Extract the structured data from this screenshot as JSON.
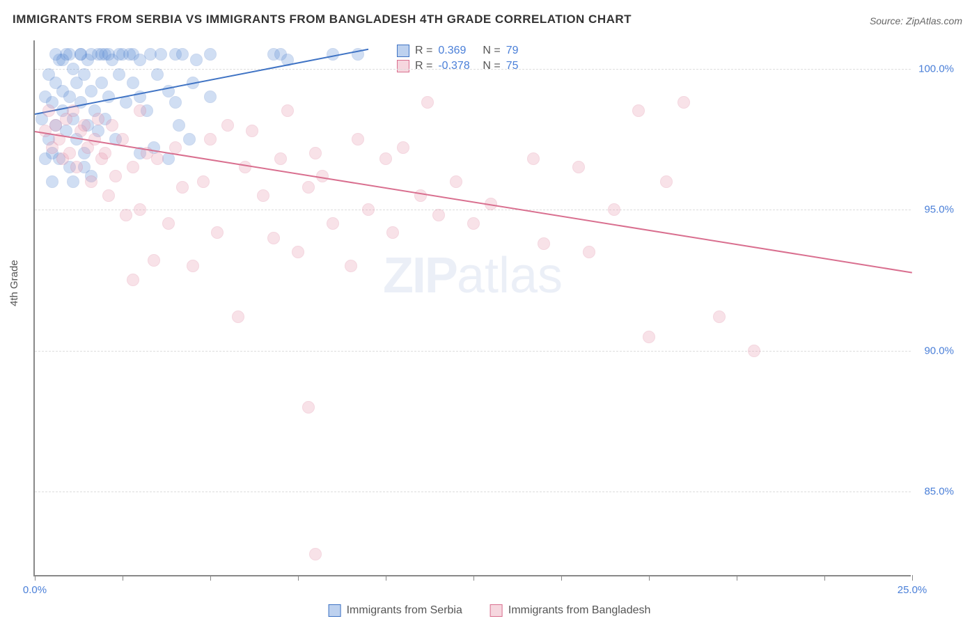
{
  "title": "IMMIGRANTS FROM SERBIA VS IMMIGRANTS FROM BANGLADESH 4TH GRADE CORRELATION CHART",
  "source": "Source: ZipAtlas.com",
  "y_axis_label": "4th Grade",
  "watermark": {
    "part1": "ZIP",
    "part2": "atlas"
  },
  "chart": {
    "type": "scatter",
    "xlim": [
      0,
      25
    ],
    "ylim": [
      82,
      101
    ],
    "xtick_minor_step": 2.5,
    "xtick_labels": [
      {
        "x": 0,
        "label": "0.0%"
      },
      {
        "x": 25,
        "label": "25.0%"
      }
    ],
    "ytick_labels": [
      {
        "y": 85,
        "label": "85.0%"
      },
      {
        "y": 90,
        "label": "90.0%"
      },
      {
        "y": 95,
        "label": "95.0%"
      },
      {
        "y": 100,
        "label": "100.0%"
      }
    ],
    "grid_color": "#e0e0e0",
    "background_color": "#ffffff",
    "marker_radius": 9,
    "marker_fill_opacity": 0.28,
    "marker_stroke_opacity": 0.9,
    "line_width": 2
  },
  "series": [
    {
      "name": "Immigrants from Serbia",
      "color": "#5b8dd6",
      "stroke": "#3f73c4",
      "r_value": "0.369",
      "n_value": "79",
      "trend": {
        "x1": 0,
        "y1": 98.4,
        "x2": 9.5,
        "y2": 100.7
      },
      "points": [
        [
          0.2,
          98.2
        ],
        [
          0.3,
          99.0
        ],
        [
          0.4,
          97.5
        ],
        [
          0.4,
          99.8
        ],
        [
          0.5,
          98.8
        ],
        [
          0.5,
          97.0
        ],
        [
          0.6,
          99.5
        ],
        [
          0.6,
          98.0
        ],
        [
          0.7,
          100.3
        ],
        [
          0.7,
          96.8
        ],
        [
          0.8,
          99.2
        ],
        [
          0.8,
          98.5
        ],
        [
          0.9,
          97.8
        ],
        [
          0.9,
          100.5
        ],
        [
          1.0,
          99.0
        ],
        [
          1.0,
          96.5
        ],
        [
          1.1,
          98.2
        ],
        [
          1.1,
          100.0
        ],
        [
          1.2,
          97.5
        ],
        [
          1.2,
          99.5
        ],
        [
          1.3,
          98.8
        ],
        [
          1.3,
          100.5
        ],
        [
          1.4,
          97.0
        ],
        [
          1.4,
          99.8
        ],
        [
          1.5,
          98.0
        ],
        [
          1.5,
          100.3
        ],
        [
          1.6,
          99.2
        ],
        [
          1.6,
          96.2
        ],
        [
          1.7,
          98.5
        ],
        [
          1.8,
          100.5
        ],
        [
          1.8,
          97.8
        ],
        [
          1.9,
          99.5
        ],
        [
          2.0,
          100.5
        ],
        [
          2.0,
          98.2
        ],
        [
          2.1,
          99.0
        ],
        [
          2.2,
          100.3
        ],
        [
          2.3,
          97.5
        ],
        [
          2.4,
          99.8
        ],
        [
          2.5,
          100.5
        ],
        [
          2.6,
          98.8
        ],
        [
          2.8,
          99.5
        ],
        [
          2.8,
          100.5
        ],
        [
          3.0,
          99.0
        ],
        [
          3.0,
          100.3
        ],
        [
          3.2,
          98.5
        ],
        [
          3.3,
          100.5
        ],
        [
          3.4,
          97.2
        ],
        [
          3.5,
          99.8
        ],
        [
          3.6,
          100.5
        ],
        [
          3.8,
          99.2
        ],
        [
          3.8,
          96.8
        ],
        [
          4.0,
          100.5
        ],
        [
          4.1,
          98.0
        ],
        [
          4.2,
          100.5
        ],
        [
          4.4,
          97.5
        ],
        [
          4.5,
          99.5
        ],
        [
          4.6,
          100.3
        ],
        [
          5.0,
          99.0
        ],
        [
          5.0,
          100.5
        ],
        [
          6.8,
          100.5
        ],
        [
          7.0,
          100.5
        ],
        [
          7.2,
          100.3
        ],
        [
          8.5,
          100.5
        ],
        [
          9.2,
          100.5
        ],
        [
          1.0,
          100.5
        ],
        [
          1.3,
          100.5
        ],
        [
          1.6,
          100.5
        ],
        [
          1.9,
          100.5
        ],
        [
          2.1,
          100.5
        ],
        [
          2.4,
          100.5
        ],
        [
          2.7,
          100.5
        ],
        [
          0.6,
          100.5
        ],
        [
          0.8,
          100.3
        ],
        [
          1.1,
          96.0
        ],
        [
          1.4,
          96.5
        ],
        [
          0.3,
          96.8
        ],
        [
          0.5,
          96.0
        ],
        [
          3.0,
          97.0
        ],
        [
          4.0,
          98.8
        ]
      ]
    },
    {
      "name": "Immigrants from Bangladesh",
      "color": "#e89ab0",
      "stroke": "#d96f8f",
      "r_value": "-0.378",
      "n_value": "75",
      "trend": {
        "x1": 0,
        "y1": 97.8,
        "x2": 25,
        "y2": 92.8
      },
      "points": [
        [
          0.3,
          97.8
        ],
        [
          0.4,
          98.5
        ],
        [
          0.5,
          97.2
        ],
        [
          0.6,
          98.0
        ],
        [
          0.7,
          97.5
        ],
        [
          0.8,
          96.8
        ],
        [
          0.9,
          98.2
        ],
        [
          1.0,
          97.0
        ],
        [
          1.1,
          98.5
        ],
        [
          1.2,
          96.5
        ],
        [
          1.3,
          97.8
        ],
        [
          1.4,
          98.0
        ],
        [
          1.5,
          97.2
        ],
        [
          1.6,
          96.0
        ],
        [
          1.7,
          97.5
        ],
        [
          1.8,
          98.2
        ],
        [
          1.9,
          96.8
        ],
        [
          2.0,
          97.0
        ],
        [
          2.1,
          95.5
        ],
        [
          2.2,
          98.0
        ],
        [
          2.3,
          96.2
        ],
        [
          2.5,
          97.5
        ],
        [
          2.6,
          94.8
        ],
        [
          2.8,
          96.5
        ],
        [
          3.0,
          98.5
        ],
        [
          3.0,
          95.0
        ],
        [
          3.2,
          97.0
        ],
        [
          3.4,
          93.2
        ],
        [
          3.5,
          96.8
        ],
        [
          3.8,
          94.5
        ],
        [
          4.0,
          97.2
        ],
        [
          4.2,
          95.8
        ],
        [
          4.5,
          93.0
        ],
        [
          4.8,
          96.0
        ],
        [
          5.0,
          97.5
        ],
        [
          5.2,
          94.2
        ],
        [
          5.5,
          98.0
        ],
        [
          5.8,
          91.2
        ],
        [
          6.0,
          96.5
        ],
        [
          6.2,
          97.8
        ],
        [
          6.5,
          95.5
        ],
        [
          6.8,
          94.0
        ],
        [
          7.0,
          96.8
        ],
        [
          7.2,
          98.5
        ],
        [
          7.5,
          93.5
        ],
        [
          7.8,
          95.8
        ],
        [
          7.8,
          88.0
        ],
        [
          8.0,
          97.0
        ],
        [
          8.0,
          82.8
        ],
        [
          8.2,
          96.2
        ],
        [
          8.5,
          94.5
        ],
        [
          9.0,
          93.0
        ],
        [
          9.2,
          97.5
        ],
        [
          9.5,
          95.0
        ],
        [
          10.0,
          96.8
        ],
        [
          10.2,
          94.2
        ],
        [
          10.5,
          97.2
        ],
        [
          11.0,
          95.5
        ],
        [
          11.2,
          98.8
        ],
        [
          11.5,
          94.8
        ],
        [
          12.0,
          96.0
        ],
        [
          12.5,
          94.5
        ],
        [
          13.0,
          95.2
        ],
        [
          14.2,
          96.8
        ],
        [
          14.5,
          93.8
        ],
        [
          15.5,
          96.5
        ],
        [
          15.8,
          93.5
        ],
        [
          16.5,
          95.0
        ],
        [
          17.2,
          98.5
        ],
        [
          17.5,
          90.5
        ],
        [
          18.0,
          96.0
        ],
        [
          18.5,
          98.8
        ],
        [
          19.5,
          91.2
        ],
        [
          20.5,
          90.0
        ],
        [
          2.8,
          92.5
        ]
      ]
    }
  ],
  "stat_legend": {
    "r_label": "R =",
    "n_label": "N ="
  },
  "bottom_legend_labels": [
    "Immigrants from Serbia",
    "Immigrants from Bangladesh"
  ]
}
